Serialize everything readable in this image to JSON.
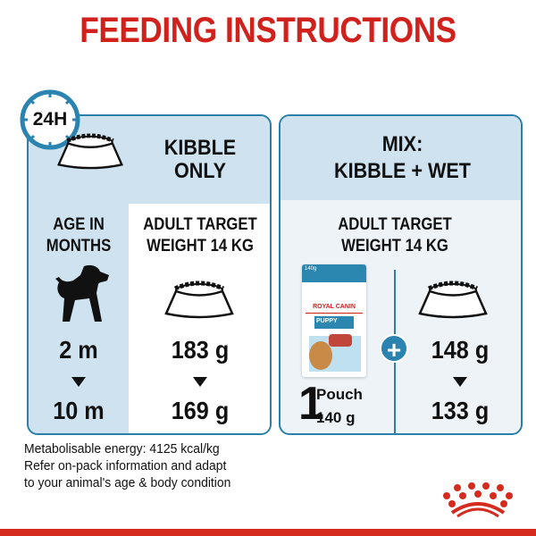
{
  "title": "FEEDING INSTRUCTIONS",
  "left_panel": {
    "badge": "24H",
    "heading_line1": "KIBBLE",
    "heading_line2": "ONLY",
    "age_label_line1": "AGE IN",
    "age_label_line2": "MONTHS",
    "target_line1": "ADULT TARGET",
    "target_line2": "WEIGHT 14 KG",
    "age_start": "2 m",
    "age_end": "10 m",
    "kibble_start": "183 g",
    "kibble_end": "169 g"
  },
  "right_panel": {
    "heading_line1": "MIX:",
    "heading_line2": "KIBBLE + WET",
    "target_line1": "ADULT TARGET",
    "target_line2": "WEIGHT 14 KG",
    "pouch_count": "1",
    "pouch_label": "Pouch",
    "pouch_weight": "140 g",
    "pouch_brand": "ROYAL CANIN",
    "pouch_variant": "PUPPY",
    "pouch_size": "140g",
    "plus": "+",
    "kibble_start": "148 g",
    "kibble_end": "133 g"
  },
  "footer": {
    "line1": "Metabolisable energy: 4125 kcal/kg",
    "line2": "Refer on-pack information and adapt",
    "line3": "to your animal's age & body condition"
  },
  "colors": {
    "brand_red": "#d0211c",
    "panel_border": "#2b7fa8",
    "panel_fill": "#cfe2f0"
  }
}
